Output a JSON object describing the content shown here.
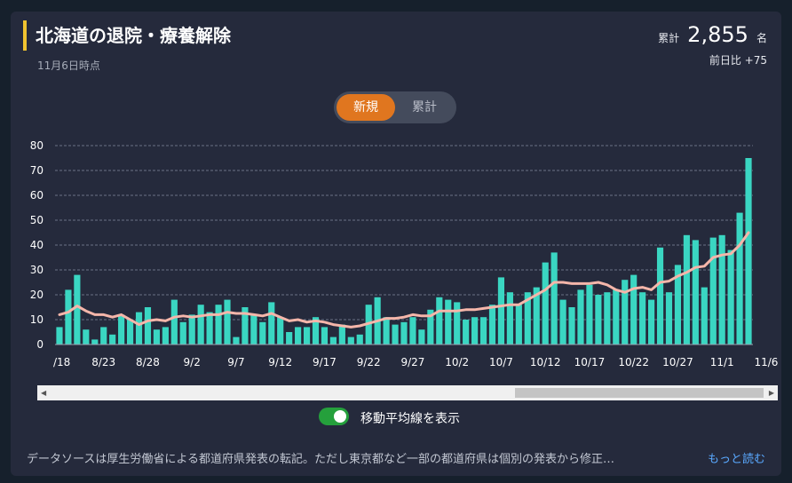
{
  "header": {
    "title": "北海道の退院・療養解除",
    "date": "11月6日時点"
  },
  "summary": {
    "total_label": "累計",
    "total_value": "2,855",
    "total_unit": "名",
    "diff_text": "前日比 +75"
  },
  "toggle": {
    "new_label": "新規",
    "cumulative_label": "累計",
    "selected": "新規"
  },
  "moving_average": {
    "label": "移動平均線を表示",
    "enabled": true
  },
  "footer": {
    "note": "データソースは厚生労働省による都道府県発表の転記。ただし東京都など一部の都道府県は個別の発表から修正…",
    "more": "もっと読む"
  },
  "colors": {
    "bar": "#3ad6c2",
    "line": "#f5b6aa",
    "accent": "#e0761f",
    "switch": "#25a03c",
    "title_bar": "#f0c330"
  },
  "chart_data": {
    "type": "bar",
    "ylim": [
      0,
      80
    ],
    "yticks": [
      0,
      10,
      20,
      30,
      40,
      50,
      60,
      70,
      80
    ],
    "grid": true,
    "tick_labels": [
      "/18",
      "8/23",
      "8/28",
      "9/2",
      "9/7",
      "9/12",
      "9/17",
      "9/22",
      "9/27",
      "10/2",
      "10/7",
      "10/12",
      "10/17",
      "10/22",
      "10/27",
      "11/1",
      "11/6"
    ],
    "series": [
      {
        "values": [
          7,
          22,
          28,
          6,
          2,
          7,
          4,
          12,
          10,
          13,
          15,
          6,
          7,
          18,
          9,
          12,
          16,
          13,
          16,
          18,
          3,
          15,
          12,
          9,
          17,
          11,
          5,
          7,
          7,
          11,
          7,
          3,
          8,
          3,
          4,
          16,
          19,
          11,
          8,
          9,
          11,
          6,
          14,
          19,
          18,
          17,
          10,
          11,
          11,
          16,
          27,
          21,
          16,
          21,
          23,
          33,
          37,
          18,
          15,
          22,
          24,
          20,
          21,
          22,
          26,
          28,
          21,
          18,
          39,
          21,
          32,
          44,
          42,
          23,
          43,
          44,
          38,
          53,
          75
        ]
      },
      {
        "values": [
          12,
          13,
          15.5,
          13.5,
          12,
          12,
          11,
          12,
          10,
          8,
          9.5,
          10,
          9.5,
          11,
          11.5,
          11,
          11.5,
          12,
          12,
          13,
          12.5,
          12.5,
          12,
          11.5,
          12.5,
          11,
          9.5,
          10,
          9,
          9.5,
          9,
          8,
          7.5,
          7,
          7.5,
          8.5,
          9.5,
          10.5,
          10.5,
          11,
          12,
          11.5,
          11.5,
          13.5,
          13.5,
          13.5,
          14,
          14,
          14.5,
          15,
          15.5,
          16,
          16,
          18,
          20,
          22,
          25,
          25,
          24.5,
          24.5,
          24.5,
          25,
          24,
          22,
          21,
          22.5,
          23,
          22,
          25,
          25.5,
          27.5,
          29,
          31,
          31.5,
          35,
          36,
          36.5,
          40,
          45
        ]
      }
    ]
  }
}
